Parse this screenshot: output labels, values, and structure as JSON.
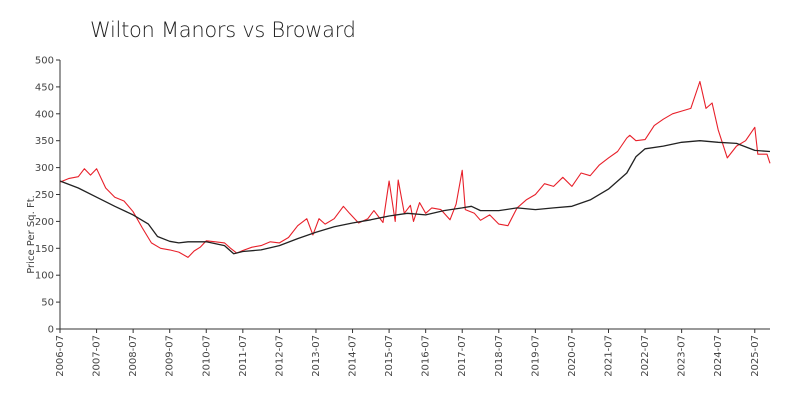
{
  "chart_data": {
    "type": "line",
    "title": "Wilton Manors vs Broward",
    "xlabel": "",
    "ylabel": "Price Per Sq. Ft.",
    "ylim": [
      0,
      500
    ],
    "yticks": [
      0,
      50,
      100,
      150,
      200,
      250,
      300,
      350,
      400,
      450,
      500
    ],
    "xticks": [
      "2006-07",
      "2007-07",
      "2008-07",
      "2009-07",
      "2010-07",
      "2011-07",
      "2012-07",
      "2013-07",
      "2014-07",
      "2015-07",
      "2016-07",
      "2017-07",
      "2018-07",
      "2019-07",
      "2020-07",
      "2021-07",
      "2022-07",
      "2023-07",
      "2024-07",
      "2025-07"
    ],
    "xrange": [
      "2006-07",
      "2025-12"
    ],
    "grid": false,
    "legend": "none",
    "series": [
      {
        "color": "#e8202a",
        "points": [
          [
            "2006-07",
            273
          ],
          [
            "2006-10",
            280
          ],
          [
            "2007-01",
            283
          ],
          [
            "2007-03",
            298
          ],
          [
            "2007-05",
            286
          ],
          [
            "2007-07",
            298
          ],
          [
            "2007-10",
            262
          ],
          [
            "2008-01",
            245
          ],
          [
            "2008-04",
            238
          ],
          [
            "2008-07",
            218
          ],
          [
            "2008-10",
            188
          ],
          [
            "2009-01",
            160
          ],
          [
            "2009-04",
            150
          ],
          [
            "2009-07",
            147
          ],
          [
            "2009-10",
            143
          ],
          [
            "2010-01",
            133
          ],
          [
            "2010-03",
            145
          ],
          [
            "2010-05",
            152
          ],
          [
            "2010-07",
            164
          ],
          [
            "2010-10",
            162
          ],
          [
            "2011-01",
            160
          ],
          [
            "2011-03",
            150
          ],
          [
            "2011-05",
            141
          ],
          [
            "2011-07",
            146
          ],
          [
            "2011-10",
            152
          ],
          [
            "2012-01",
            155
          ],
          [
            "2012-04",
            162
          ],
          [
            "2012-07",
            160
          ],
          [
            "2012-10",
            170
          ],
          [
            "2013-01",
            192
          ],
          [
            "2013-04",
            205
          ],
          [
            "2013-06",
            175
          ],
          [
            "2013-08",
            205
          ],
          [
            "2013-10",
            195
          ],
          [
            "2014-01",
            205
          ],
          [
            "2014-04",
            228
          ],
          [
            "2014-06",
            215
          ],
          [
            "2014-09",
            197
          ],
          [
            "2014-12",
            205
          ],
          [
            "2015-02",
            220
          ],
          [
            "2015-05",
            198
          ],
          [
            "2015-07",
            275
          ],
          [
            "2015-09",
            200
          ],
          [
            "2015-10",
            277
          ],
          [
            "2015-12",
            215
          ],
          [
            "2016-02",
            230
          ],
          [
            "2016-03",
            200
          ],
          [
            "2016-05",
            235
          ],
          [
            "2016-07",
            215
          ],
          [
            "2016-09",
            225
          ],
          [
            "2016-12",
            222
          ],
          [
            "2017-03",
            203
          ],
          [
            "2017-05",
            232
          ],
          [
            "2017-07",
            295
          ],
          [
            "2017-08",
            222
          ],
          [
            "2017-11",
            215
          ],
          [
            "2018-01",
            202
          ],
          [
            "2018-04",
            212
          ],
          [
            "2018-07",
            195
          ],
          [
            "2018-10",
            192
          ],
          [
            "2019-01",
            225
          ],
          [
            "2019-04",
            240
          ],
          [
            "2019-07",
            250
          ],
          [
            "2019-10",
            270
          ],
          [
            "2020-01",
            265
          ],
          [
            "2020-04",
            282
          ],
          [
            "2020-07",
            265
          ],
          [
            "2020-10",
            290
          ],
          [
            "2021-01",
            285
          ],
          [
            "2021-04",
            305
          ],
          [
            "2021-07",
            318
          ],
          [
            "2021-10",
            330
          ],
          [
            "2022-01",
            355
          ],
          [
            "2022-02",
            360
          ],
          [
            "2022-04",
            350
          ],
          [
            "2022-07",
            352
          ],
          [
            "2022-10",
            378
          ],
          [
            "2023-01",
            390
          ],
          [
            "2023-04",
            400
          ],
          [
            "2023-07",
            405
          ],
          [
            "2023-10",
            410
          ],
          [
            "2024-01",
            460
          ],
          [
            "2024-03",
            410
          ],
          [
            "2024-05",
            420
          ],
          [
            "2024-07",
            370
          ],
          [
            "2024-10",
            318
          ],
          [
            "2025-01",
            340
          ],
          [
            "2025-04",
            350
          ],
          [
            "2025-07",
            375
          ],
          [
            "2025-08",
            325
          ],
          [
            "2025-11",
            325
          ],
          [
            "2025-12",
            308
          ]
        ]
      },
      {
        "color": "#222222",
        "points": [
          [
            "2006-07",
            275
          ],
          [
            "2007-01",
            262
          ],
          [
            "2007-07",
            245
          ],
          [
            "2008-01",
            228
          ],
          [
            "2008-07",
            212
          ],
          [
            "2008-12",
            195
          ],
          [
            "2009-03",
            172
          ],
          [
            "2009-07",
            163
          ],
          [
            "2009-10",
            160
          ],
          [
            "2010-01",
            162
          ],
          [
            "2010-07",
            162
          ],
          [
            "2011-01",
            155
          ],
          [
            "2011-04",
            140
          ],
          [
            "2011-07",
            144
          ],
          [
            "2012-01",
            147
          ],
          [
            "2012-07",
            155
          ],
          [
            "2013-01",
            168
          ],
          [
            "2013-07",
            180
          ],
          [
            "2014-01",
            190
          ],
          [
            "2014-07",
            197
          ],
          [
            "2015-01",
            203
          ],
          [
            "2015-07",
            210
          ],
          [
            "2016-01",
            215
          ],
          [
            "2016-07",
            212
          ],
          [
            "2017-01",
            220
          ],
          [
            "2017-07",
            225
          ],
          [
            "2017-10",
            228
          ],
          [
            "2018-01",
            220
          ],
          [
            "2018-07",
            220
          ],
          [
            "2019-01",
            225
          ],
          [
            "2019-07",
            222
          ],
          [
            "2020-01",
            225
          ],
          [
            "2020-07",
            228
          ],
          [
            "2021-01",
            240
          ],
          [
            "2021-07",
            260
          ],
          [
            "2022-01",
            290
          ],
          [
            "2022-04",
            320
          ],
          [
            "2022-07",
            335
          ],
          [
            "2023-01",
            340
          ],
          [
            "2023-07",
            347
          ],
          [
            "2024-01",
            350
          ],
          [
            "2024-07",
            347
          ],
          [
            "2025-01",
            345
          ],
          [
            "2025-07",
            332
          ],
          [
            "2025-12",
            330
          ]
        ]
      }
    ]
  }
}
